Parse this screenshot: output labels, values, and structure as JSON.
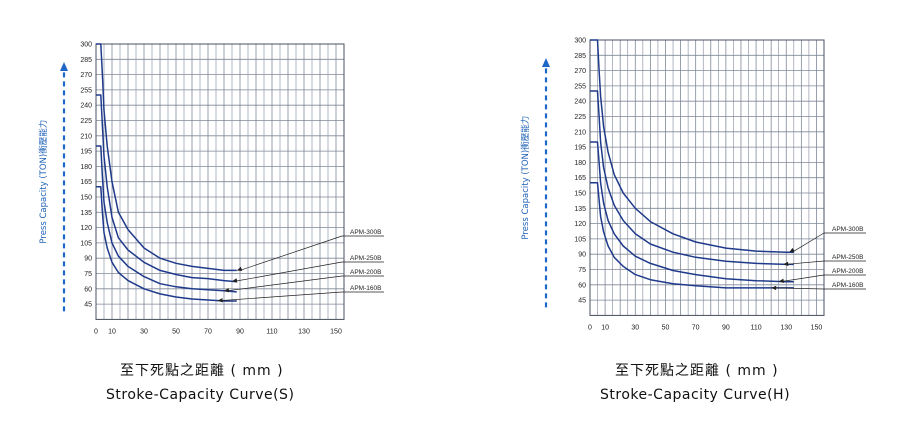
{
  "chart_data": [
    {
      "type": "line",
      "title": "Stroke-Capacity Curve(S)",
      "subtitle": "至下死點之距離 ( mm )",
      "ylabel": "Press Capacity (TON)衝壓能力",
      "xlabel": "",
      "xlim": [
        0,
        155
      ],
      "ylim": [
        30,
        300
      ],
      "x_ticks": [
        0,
        10,
        30,
        50,
        70,
        90,
        110,
        130,
        150
      ],
      "y_ticks": [
        45,
        60,
        75,
        90,
        105,
        120,
        135,
        150,
        165,
        180,
        195,
        210,
        225,
        240,
        255,
        270,
        285,
        300
      ],
      "grid": true,
      "series": [
        {
          "name": "APM-300B",
          "x": [
            0,
            3,
            4,
            5,
            7,
            10,
            14,
            20,
            30,
            40,
            50,
            60,
            70,
            80,
            88
          ],
          "y": [
            300,
            300,
            270,
            235,
            200,
            165,
            135,
            118,
            100,
            90,
            85,
            82,
            80,
            78,
            78
          ]
        },
        {
          "name": "APM-250B",
          "x": [
            0,
            3,
            4,
            5,
            7,
            10,
            14,
            20,
            30,
            40,
            50,
            60,
            70,
            80,
            88
          ],
          "y": [
            250,
            250,
            220,
            190,
            160,
            130,
            110,
            98,
            86,
            78,
            74,
            71,
            70,
            68,
            67
          ]
        },
        {
          "name": "APM-200B",
          "x": [
            0,
            3,
            4,
            5,
            7,
            10,
            14,
            20,
            30,
            40,
            50,
            60,
            70,
            80,
            88
          ],
          "y": [
            200,
            200,
            170,
            145,
            125,
            105,
            92,
            82,
            72,
            65,
            62,
            60,
            59,
            58,
            57
          ]
        },
        {
          "name": "APM-160B",
          "x": [
            0,
            3,
            4,
            5,
            7,
            10,
            14,
            20,
            30,
            40,
            50,
            60,
            70,
            80,
            88
          ],
          "y": [
            160,
            160,
            135,
            115,
            100,
            86,
            76,
            68,
            60,
            55,
            52,
            50,
            49,
            48,
            48
          ]
        }
      ]
    },
    {
      "type": "line",
      "title": "Stroke-Capacity Curve(H)",
      "subtitle": "至下死點之距離 ( mm )",
      "ylabel": "Press Capacity (TON)衝壓能力",
      "xlabel": "",
      "xlim": [
        0,
        155
      ],
      "ylim": [
        30,
        300
      ],
      "x_ticks": [
        0,
        10,
        30,
        50,
        70,
        90,
        110,
        130,
        150
      ],
      "y_ticks": [
        45,
        60,
        75,
        90,
        105,
        120,
        135,
        150,
        165,
        180,
        195,
        210,
        225,
        240,
        255,
        270,
        285,
        300
      ],
      "grid": true,
      "series": [
        {
          "name": "APM-300B",
          "x": [
            0,
            5,
            6,
            7,
            9,
            12,
            16,
            22,
            30,
            40,
            55,
            70,
            90,
            110,
            130,
            135
          ],
          "y": [
            300,
            300,
            270,
            245,
            215,
            190,
            168,
            150,
            135,
            122,
            110,
            102,
            96,
            93,
            92,
            92
          ]
        },
        {
          "name": "APM-250B",
          "x": [
            0,
            5,
            6,
            7,
            9,
            12,
            16,
            22,
            30,
            40,
            55,
            70,
            90,
            110,
            130,
            135
          ],
          "y": [
            250,
            250,
            225,
            200,
            175,
            155,
            138,
            123,
            110,
            100,
            92,
            87,
            83,
            81,
            80,
            80
          ]
        },
        {
          "name": "APM-200B",
          "x": [
            0,
            5,
            6,
            7,
            9,
            12,
            16,
            22,
            30,
            40,
            55,
            70,
            90,
            110,
            130,
            135
          ],
          "y": [
            200,
            200,
            180,
            160,
            140,
            123,
            110,
            98,
            88,
            81,
            74,
            70,
            66,
            64,
            63,
            63
          ]
        },
        {
          "name": "APM-160B",
          "x": [
            0,
            5,
            6,
            7,
            9,
            12,
            16,
            22,
            30,
            40,
            55,
            70,
            90,
            110,
            130,
            135
          ],
          "y": [
            160,
            160,
            143,
            127,
            112,
            98,
            87,
            78,
            70,
            65,
            61,
            59,
            57,
            57,
            57,
            57
          ]
        }
      ]
    }
  ]
}
